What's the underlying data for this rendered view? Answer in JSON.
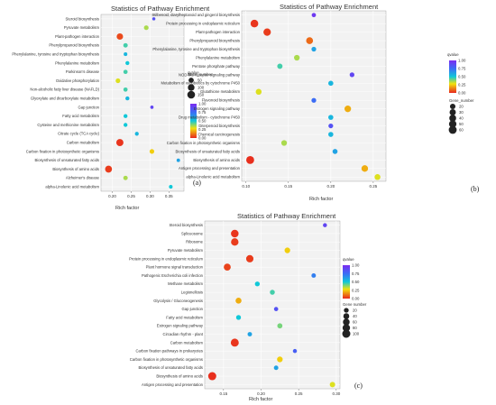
{
  "chart_data": [
    {
      "type": "scatter",
      "panel_label": "(a)",
      "title": "Statistics of Pathway Enrichment",
      "xlabel": "Rich factor",
      "ylabel": "",
      "xlim": [
        0.17,
        0.39
      ],
      "xticks": [
        "0.20",
        "0.25",
        "0.30",
        "0.35"
      ],
      "xtick_values": [
        0.2,
        0.25,
        0.3,
        0.35
      ],
      "grid": true,
      "color_legend": {
        "title": "qvalue",
        "ticks": [
          "1.00",
          "0.75",
          "0.50",
          "0.25",
          "0.00"
        ]
      },
      "size_legend": {
        "title": "Gene_number",
        "ticks": [
          "50",
          "100",
          "150"
        ]
      },
      "points": [
        {
          "category": "Steroid biosynthesis",
          "x": 0.31,
          "gene_number": 8,
          "qvalue": 0.85
        },
        {
          "category": "Pyruvate metabolism",
          "x": 0.29,
          "gene_number": 35,
          "qvalue": 0.35
        },
        {
          "category": "Plant-pathogen interaction",
          "x": 0.22,
          "gene_number": 90,
          "qvalue": 0.05
        },
        {
          "category": "Phenylpropanoid biosynthesis",
          "x": 0.235,
          "gene_number": 30,
          "qvalue": 0.45
        },
        {
          "category": "Phenylalanine, tyrosine and tryptophan biosynthesis",
          "x": 0.235,
          "gene_number": 15,
          "qvalue": 0.55
        },
        {
          "category": "Phenylalanine metabolism",
          "x": 0.24,
          "gene_number": 20,
          "qvalue": 0.5
        },
        {
          "category": "Parkinson's disease",
          "x": 0.235,
          "gene_number": 25,
          "qvalue": 0.45
        },
        {
          "category": "Oxidative phosphorylation",
          "x": 0.215,
          "gene_number": 35,
          "qvalue": 0.3
        },
        {
          "category": "Non-alcoholic fatty liver disease (NAFLD)",
          "x": 0.235,
          "gene_number": 25,
          "qvalue": 0.45
        },
        {
          "category": "Glyoxylate and dicarboxylate metabolism",
          "x": 0.24,
          "gene_number": 20,
          "qvalue": 0.55
        },
        {
          "category": "Gap junction",
          "x": 0.305,
          "gene_number": 10,
          "qvalue": 0.9
        },
        {
          "category": "Fatty acid metabolism",
          "x": 0.235,
          "gene_number": 20,
          "qvalue": 0.5
        },
        {
          "category": "Cysteine and methionine metabolism",
          "x": 0.235,
          "gene_number": 20,
          "qvalue": 0.5
        },
        {
          "category": "Citrate cycle (TCA cycle)",
          "x": 0.265,
          "gene_number": 18,
          "qvalue": 0.55
        },
        {
          "category": "Carbon metabolism",
          "x": 0.22,
          "gene_number": 120,
          "qvalue": 0.02
        },
        {
          "category": "Carbon fixation in photosynthetic organisms",
          "x": 0.305,
          "gene_number": 35,
          "qvalue": 0.25
        },
        {
          "category": "Biosynthesis of unsaturated fatty acids",
          "x": 0.375,
          "gene_number": 12,
          "qvalue": 0.6
        },
        {
          "category": "Biosynthesis of amino acids",
          "x": 0.19,
          "gene_number": 110,
          "qvalue": 0.03
        },
        {
          "category": "Alzheimer's disease",
          "x": 0.235,
          "gene_number": 30,
          "qvalue": 0.35
        },
        {
          "category": "alpha-Linolenic acid metabolism",
          "x": 0.355,
          "gene_number": 15,
          "qvalue": 0.5
        }
      ]
    },
    {
      "type": "scatter",
      "panel_label": "(b)",
      "title": "Statistics of Pathway Enrichment",
      "xlabel": "Rich factor",
      "ylabel": "",
      "xlim": [
        0.095,
        0.265
      ],
      "xticks": [
        "0.10",
        "0.15",
        "0.20",
        "0.25"
      ],
      "xtick_values": [
        0.1,
        0.15,
        0.2,
        0.25
      ],
      "grid": true,
      "color_legend": {
        "title": "qvalue",
        "ticks": [
          "1.00",
          "0.75",
          "0.50",
          "0.25",
          "0.00"
        ]
      },
      "size_legend": {
        "title": "Gene_number",
        "ticks": [
          "20",
          "30",
          "40",
          "50",
          "60"
        ]
      },
      "points": [
        {
          "category": "Stilbenoid, diarylheptanoid and gingerol biosynthesis",
          "x": 0.18,
          "gene_number": 8,
          "qvalue": 0.95
        },
        {
          "category": "Protein processing in endoplasmic reticulum",
          "x": 0.11,
          "gene_number": 55,
          "qvalue": 0.02
        },
        {
          "category": "Plant-pathogen interaction",
          "x": 0.125,
          "gene_number": 50,
          "qvalue": 0.03
        },
        {
          "category": "Phenylpropanoid biosynthesis",
          "x": 0.175,
          "gene_number": 40,
          "qvalue": 0.1
        },
        {
          "category": "Phenylalanine, tyrosine and tryptophan biosynthesis",
          "x": 0.18,
          "gene_number": 12,
          "qvalue": 0.6
        },
        {
          "category": "Phenylalanine metabolism",
          "x": 0.16,
          "gene_number": 22,
          "qvalue": 0.35
        },
        {
          "category": "Pentose phosphate pathway",
          "x": 0.14,
          "gene_number": 18,
          "qvalue": 0.45
        },
        {
          "category": "NOD-like receptor signaling pathway",
          "x": 0.225,
          "gene_number": 12,
          "qvalue": 0.9
        },
        {
          "category": "Metabolism of xenobiotics by cytochrome P450",
          "x": 0.2,
          "gene_number": 15,
          "qvalue": 0.55
        },
        {
          "category": "Glutathione metabolism",
          "x": 0.115,
          "gene_number": 25,
          "qvalue": 0.3
        },
        {
          "category": "Flavonoid biosynthesis",
          "x": 0.18,
          "gene_number": 12,
          "qvalue": 0.75
        },
        {
          "category": "Estrogen signaling pathway",
          "x": 0.22,
          "gene_number": 35,
          "qvalue": 0.2
        },
        {
          "category": "Drug metabolism - cytochrome P450",
          "x": 0.2,
          "gene_number": 15,
          "qvalue": 0.55
        },
        {
          "category": "Diterpenoid biosynthesis",
          "x": 0.2,
          "gene_number": 12,
          "qvalue": 0.85
        },
        {
          "category": "Chemical carcinogenesis",
          "x": 0.2,
          "gene_number": 15,
          "qvalue": 0.55
        },
        {
          "category": "Carbon fixation in photosynthetic organisms",
          "x": 0.145,
          "gene_number": 22,
          "qvalue": 0.35
        },
        {
          "category": "Biosynthesis of unsaturated fatty acids",
          "x": 0.205,
          "gene_number": 15,
          "qvalue": 0.6
        },
        {
          "category": "Biosynthesis of amino acids",
          "x": 0.105,
          "gene_number": 60,
          "qvalue": 0.01
        },
        {
          "category": "Antigen processing and presentation",
          "x": 0.24,
          "gene_number": 35,
          "qvalue": 0.2
        },
        {
          "category": "alpha-Linolenic acid metabolism",
          "x": 0.255,
          "gene_number": 25,
          "qvalue": 0.3
        }
      ]
    },
    {
      "type": "scatter",
      "panel_label": "(c)",
      "title": "Statistics of Pathway Enrichment",
      "xlabel": "Rich factor",
      "ylabel": "",
      "xlim": [
        0.125,
        0.305
      ],
      "xticks": [
        "0.15",
        "0.20",
        "0.25",
        "0.30"
      ],
      "xtick_values": [
        0.15,
        0.2,
        0.25,
        0.3
      ],
      "grid": true,
      "color_legend": {
        "title": "qvalue",
        "ticks": [
          "1.00",
          "0.75",
          "0.50",
          "0.25",
          "0.00"
        ]
      },
      "size_legend": {
        "title": "Gene number",
        "ticks": [
          "20",
          "40",
          "60",
          "80",
          "100"
        ]
      },
      "points": [
        {
          "category": "Steroid biosynthesis",
          "x": 0.285,
          "gene_number": 10,
          "qvalue": 0.9
        },
        {
          "category": "Spliceosome",
          "x": 0.165,
          "gene_number": 85,
          "qvalue": 0.02
        },
        {
          "category": "Ribosome",
          "x": 0.165,
          "gene_number": 80,
          "qvalue": 0.03
        },
        {
          "category": "Pyruvate metabolism",
          "x": 0.235,
          "gene_number": 35,
          "qvalue": 0.25
        },
        {
          "category": "Protein processing in endoplasmic reticulum",
          "x": 0.185,
          "gene_number": 75,
          "qvalue": 0.03
        },
        {
          "category": "Plant hormone signal transduction",
          "x": 0.155,
          "gene_number": 65,
          "qvalue": 0.04
        },
        {
          "category": "Pathogenic Escherichia coli infection",
          "x": 0.27,
          "gene_number": 15,
          "qvalue": 0.7
        },
        {
          "category": "Methane metabolism",
          "x": 0.195,
          "gene_number": 20,
          "qvalue": 0.5
        },
        {
          "category": "Legionellosis",
          "x": 0.215,
          "gene_number": 22,
          "qvalue": 0.45
        },
        {
          "category": "Glycolysis / Gluconeogenesis",
          "x": 0.17,
          "gene_number": 40,
          "qvalue": 0.2
        },
        {
          "category": "Gap junction",
          "x": 0.22,
          "gene_number": 12,
          "qvalue": 0.85
        },
        {
          "category": "Fatty acid metabolism",
          "x": 0.17,
          "gene_number": 20,
          "qvalue": 0.5
        },
        {
          "category": "Estrogen signaling pathway",
          "x": 0.225,
          "gene_number": 25,
          "qvalue": 0.4
        },
        {
          "category": "Circadian rhythm - plant",
          "x": 0.185,
          "gene_number": 15,
          "qvalue": 0.6
        },
        {
          "category": "Carbon metabolism",
          "x": 0.165,
          "gene_number": 95,
          "qvalue": 0.02
        },
        {
          "category": "Carbon fixation pathways in prokaryotes",
          "x": 0.245,
          "gene_number": 10,
          "qvalue": 0.8
        },
        {
          "category": "Carbon fixation in photosynthetic organisms",
          "x": 0.225,
          "gene_number": 35,
          "qvalue": 0.25
        },
        {
          "category": "Biosynthesis of unsaturated fatty acids",
          "x": 0.22,
          "gene_number": 15,
          "qvalue": 0.6
        },
        {
          "category": "Biosynthesis of amino acids",
          "x": 0.135,
          "gene_number": 100,
          "qvalue": 0.01
        },
        {
          "category": "Antigen processing and presentation",
          "x": 0.295,
          "gene_number": 30,
          "qvalue": 0.3
        }
      ]
    }
  ]
}
